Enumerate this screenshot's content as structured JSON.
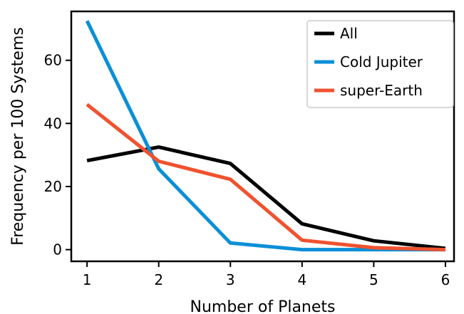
{
  "chart_data": {
    "type": "line",
    "x": [
      1,
      2,
      3,
      4,
      5,
      6
    ],
    "xlabel": "Number of Planets",
    "ylabel": "Frequency per 100 Systems",
    "xlim": [
      0.78,
      6.12
    ],
    "ylim": [
      -3.7,
      75.5
    ],
    "xticks": [
      1,
      2,
      3,
      4,
      5,
      6
    ],
    "yticks": [
      0,
      20,
      40,
      60
    ],
    "grid": false,
    "legend_position": "top-right",
    "series": [
      {
        "name": "All",
        "color": "#000000",
        "values": [
          28.2,
          32.5,
          27.3,
          8.2,
          2.8,
          0.4
        ]
      },
      {
        "name": "Cold Jupiter",
        "color": "#0b8fd7",
        "values": [
          72.5,
          25.6,
          2.1,
          0.0,
          0.0,
          0.0
        ]
      },
      {
        "name": "super-Earth",
        "color": "#f0522f",
        "values": [
          46.0,
          28.0,
          22.3,
          3.0,
          0.6,
          0.0
        ]
      }
    ]
  }
}
